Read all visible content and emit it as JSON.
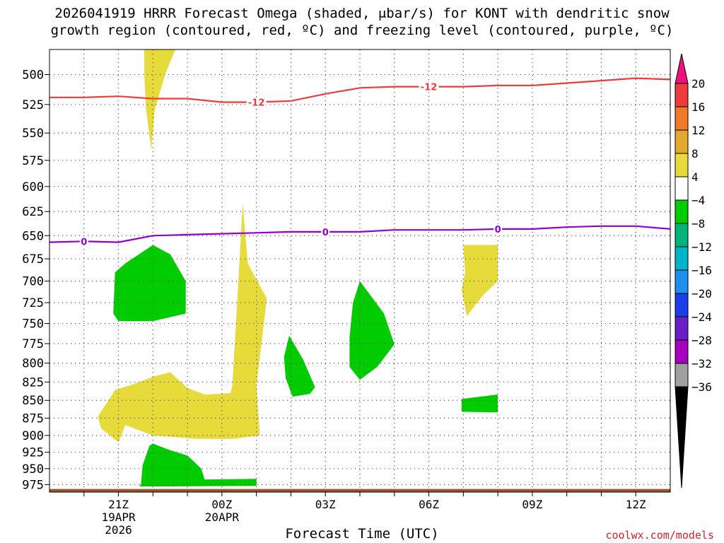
{
  "title_line1": "2026041919 HRRR Forecast Omega (shaded, μbar/s) for KONT with dendritic snow",
  "title_line2": "growth region (contoured, red, ºC) and freezing level (contoured, purple, ºC)",
  "xlabel": "Forecast Time (UTC)",
  "credit": "coolwx.com/models",
  "chart_data": {
    "type": "heatmap",
    "title": "2026041919 HRRR Forecast Omega (shaded, μbar/s) for KONT with dendritic snow growth region (contoured, red, ºC) and freezing level (contoured, purple, ºC)",
    "xlabel": "Forecast Time (UTC)",
    "ylabel": "",
    "x_units": "hours since 19Z 19APR 2026",
    "xlim": [
      0,
      18
    ],
    "ylim": [
      987,
      480
    ],
    "y_ticks": [
      500,
      525,
      550,
      575,
      600,
      625,
      650,
      675,
      700,
      725,
      750,
      775,
      800,
      825,
      850,
      875,
      900,
      925,
      950,
      975
    ],
    "x_ticks": [
      {
        "x": 2,
        "lines": [
          "21Z",
          "19APR",
          "2026"
        ]
      },
      {
        "x": 5,
        "lines": [
          "00Z",
          "20APR"
        ]
      },
      {
        "x": 8,
        "lines": [
          "03Z"
        ]
      },
      {
        "x": 11,
        "lines": [
          "06Z"
        ]
      },
      {
        "x": 14,
        "lines": [
          "09Z"
        ]
      },
      {
        "x": 17,
        "lines": [
          "12Z"
        ]
      }
    ],
    "grid": true,
    "colorbar": {
      "labels": [
        "20",
        "16",
        "12",
        "8",
        "4",
        "−4",
        "−8",
        "−12",
        "−16",
        "−20",
        "−24",
        "−28",
        "−32",
        "−36"
      ],
      "colors": [
        "#ee1280",
        "#ee3b3b",
        "#ee7a2a",
        "#e2a92f",
        "#e6db3a",
        "#ffffff",
        "#00cc00",
        "#00b377",
        "#00b4c8",
        "#1f8fee",
        "#1c3ee6",
        "#6a1fc6",
        "#a800c0",
        "#a0a0a0",
        "#000000"
      ]
    },
    "surface": {
      "color": "#a0522d",
      "x": [
        0,
        18
      ],
      "p": [
        982,
        982
      ]
    },
    "contours": [
      {
        "name": "-12 °C",
        "color": "#ee3b3b",
        "label": "-12",
        "x": [
          0,
          1,
          2,
          3,
          4,
          5,
          6,
          7,
          8,
          9,
          10,
          11,
          12,
          13,
          14,
          15,
          16,
          17,
          18
        ],
        "p": [
          519,
          519,
          518,
          520,
          520,
          523,
          523,
          522,
          516,
          511,
          510,
          510,
          510,
          509,
          509,
          507,
          505,
          503,
          504
        ],
        "label_x": [
          6,
          11
        ]
      },
      {
        "name": "0 °C",
        "color": "#9400d3",
        "label": "0",
        "x": [
          0,
          1,
          2,
          3,
          4,
          5,
          6,
          7,
          8,
          9,
          10,
          11,
          12,
          13,
          14,
          15,
          16,
          17,
          18
        ],
        "p": [
          657,
          656,
          657,
          650,
          649,
          648,
          647,
          646,
          646,
          646,
          644,
          644,
          644,
          643,
          643,
          641,
          640,
          640,
          643
        ],
        "label_x": [
          1,
          8,
          13
        ]
      }
    ],
    "shaded_regions": [
      {
        "omega_bin": "4 to 8 (ascent)",
        "color": "#e6db3a",
        "points": [
          [
            2.75,
            480
          ],
          [
            3.65,
            480
          ],
          [
            3.35,
            500
          ],
          [
            3.05,
            530
          ],
          [
            2.95,
            565
          ],
          [
            2.8,
            530
          ],
          [
            2.75,
            500
          ]
        ]
      },
      {
        "omega_bin": "4 to 8 (ascent)",
        "color": "#e6db3a",
        "points": [
          [
            1.4,
            873
          ],
          [
            1.9,
            836
          ],
          [
            2.5,
            827
          ],
          [
            3.0,
            818
          ],
          [
            3.5,
            812
          ],
          [
            4.0,
            833
          ],
          [
            4.5,
            842
          ],
          [
            5.25,
            840
          ],
          [
            5.3,
            830
          ],
          [
            5.45,
            720
          ],
          [
            5.6,
            617
          ],
          [
            5.75,
            680
          ],
          [
            6.3,
            720
          ],
          [
            6.0,
            830
          ],
          [
            6.1,
            900
          ],
          [
            5.3,
            905
          ],
          [
            4.3,
            905
          ],
          [
            3.0,
            900
          ],
          [
            2.2,
            885
          ],
          [
            2.0,
            910
          ],
          [
            1.5,
            890
          ]
        ]
      },
      {
        "omega_bin": "4 to 8 (ascent)",
        "color": "#e6db3a",
        "points": [
          [
            12.0,
            660
          ],
          [
            13.0,
            660
          ],
          [
            13.0,
            700
          ],
          [
            12.6,
            715
          ],
          [
            12.1,
            741
          ],
          [
            11.95,
            710
          ],
          [
            12.05,
            690
          ]
        ]
      },
      {
        "omega_bin": "-4 to -8 (sinking)",
        "color": "#00cc00",
        "points": [
          [
            1.85,
            738
          ],
          [
            1.9,
            690
          ],
          [
            2.2,
            680
          ],
          [
            3.0,
            660
          ],
          [
            3.5,
            670
          ],
          [
            3.95,
            700
          ],
          [
            3.95,
            738
          ],
          [
            3.0,
            747
          ],
          [
            2.0,
            747
          ]
        ]
      },
      {
        "omega_bin": "-4 to -8 (sinking)",
        "color": "#00cc00",
        "points": [
          [
            2.65,
            975
          ],
          [
            2.7,
            945
          ],
          [
            2.9,
            915
          ],
          [
            3.0,
            912
          ],
          [
            3.5,
            922
          ],
          [
            4.0,
            930
          ],
          [
            4.4,
            950
          ],
          [
            4.5,
            967
          ],
          [
            6.0,
            966
          ],
          [
            6.0,
            977
          ],
          [
            3.5,
            978
          ],
          [
            2.6,
            978
          ]
        ]
      },
      {
        "omega_bin": "-4 to -8 (sinking)",
        "color": "#00cc00",
        "points": [
          [
            6.8,
            792
          ],
          [
            6.95,
            765
          ],
          [
            7.35,
            795
          ],
          [
            7.7,
            832
          ],
          [
            7.55,
            841
          ],
          [
            7.05,
            845
          ],
          [
            6.85,
            820
          ]
        ]
      },
      {
        "omega_bin": "-4 to -8 (sinking)",
        "color": "#00cc00",
        "points": [
          [
            8.7,
            767
          ],
          [
            8.8,
            725
          ],
          [
            9.0,
            700
          ],
          [
            9.7,
            738
          ],
          [
            10.0,
            776
          ],
          [
            9.5,
            805
          ],
          [
            9.0,
            822
          ],
          [
            8.7,
            805
          ]
        ]
      },
      {
        "omega_bin": "-4 to -8 (sinking)",
        "color": "#00cc00",
        "points": [
          [
            11.95,
            848
          ],
          [
            13.0,
            842
          ],
          [
            13.0,
            867
          ],
          [
            11.95,
            866
          ]
        ]
      }
    ]
  }
}
